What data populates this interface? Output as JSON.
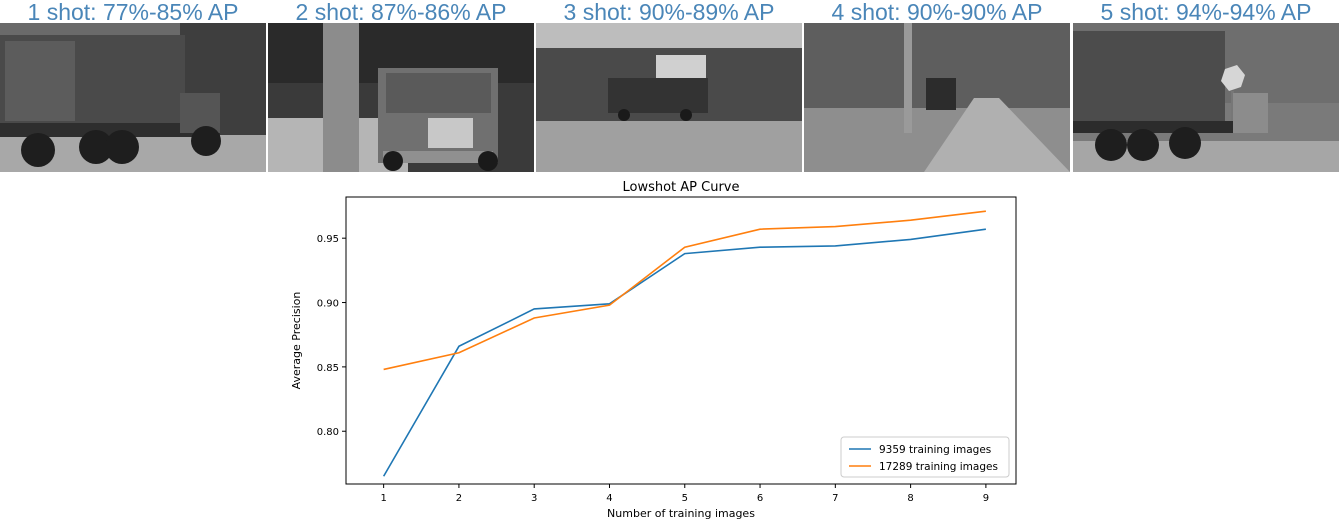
{
  "panels": [
    {
      "label": "1 shot: 77%-85% AP",
      "scene": "truck-side"
    },
    {
      "label": "2 shot: 87%-86% AP",
      "scene": "truck-front"
    },
    {
      "label": "3 shot: 90%-89% AP",
      "scene": "truck-distant"
    },
    {
      "label": "4 shot: 90%-90% AP",
      "scene": "truck-road"
    },
    {
      "label": "5 shot: 94%-94% AP",
      "scene": "truck-stop-sign"
    }
  ],
  "colors": {
    "label_text": "#4a86b8",
    "series_blue": "#1f77b4",
    "series_orange": "#ff7f0e"
  },
  "chart_data": {
    "type": "line",
    "title": "Lowshot AP Curve",
    "xlabel": "Number of training images",
    "ylabel": "Average Precision",
    "x": [
      1,
      2,
      3,
      4,
      5,
      6,
      7,
      8,
      9
    ],
    "xlim": [
      0.5,
      9.4
    ],
    "ylim": [
      0.759,
      0.982
    ],
    "xticks": [
      1,
      2,
      3,
      4,
      5,
      6,
      7,
      8,
      9
    ],
    "yticks": [
      0.8,
      0.85,
      0.9,
      0.95
    ],
    "ytick_labels": [
      "0.80",
      "0.85",
      "0.90",
      "0.95"
    ],
    "grid": false,
    "legend_position": "lower-right",
    "series": [
      {
        "name": "9359 training images",
        "color": "#1f77b4",
        "values": [
          0.765,
          0.866,
          0.895,
          0.899,
          0.938,
          0.943,
          0.944,
          0.949,
          0.957
        ]
      },
      {
        "name": "17289 training images",
        "color": "#ff7f0e",
        "values": [
          0.848,
          0.861,
          0.888,
          0.898,
          0.943,
          0.957,
          0.959,
          0.964,
          0.971
        ]
      }
    ]
  }
}
